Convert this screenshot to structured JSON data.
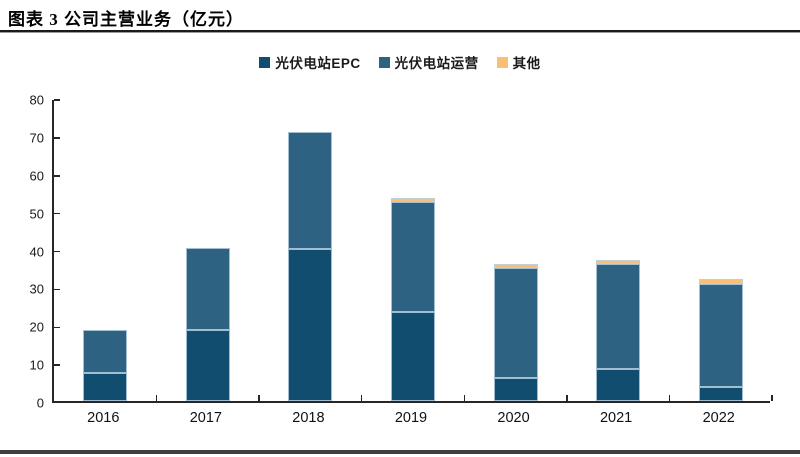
{
  "page": {
    "title": "图表 3 公司主营业务（亿元）"
  },
  "chart_data": {
    "type": "bar",
    "stacked": true,
    "title": "图表 3 公司主营业务（亿元）",
    "xlabel": "",
    "ylabel": "",
    "categories": [
      "2016",
      "2017",
      "2018",
      "2019",
      "2020",
      "2021",
      "2022"
    ],
    "series": [
      {
        "name": "光伏电站EPC",
        "color": "#114D6E",
        "values": [
          7.5,
          18.7,
          40.2,
          23.5,
          6.0,
          8.4,
          3.8
        ]
      },
      {
        "name": "光伏电站运营",
        "color": "#2D6282",
        "values": [
          11.2,
          21.8,
          30.8,
          29.0,
          29.0,
          27.9,
          27.2
        ]
      },
      {
        "name": "其他",
        "color": "#FBBE75",
        "values": [
          0,
          0,
          0,
          1.0,
          1.3,
          0.9,
          1.2
        ]
      }
    ],
    "totals": [
      18.7,
      40.5,
      71.0,
      53.5,
      36.3,
      37.2,
      32.2
    ],
    "ylim": [
      0,
      80
    ],
    "yticks": [
      0,
      10,
      20,
      30,
      40,
      50,
      60,
      70,
      80
    ],
    "grid": false,
    "legend_position": "top-center",
    "axis_color": "#262626",
    "segment_edge_color": "#B9D1E0"
  }
}
